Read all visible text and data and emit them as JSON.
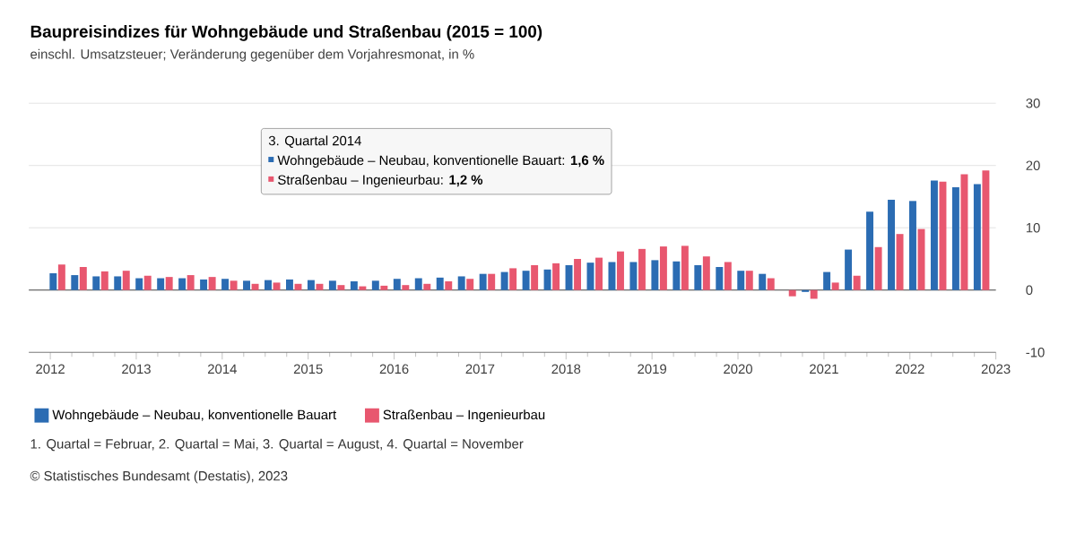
{
  "chart_data": {
    "type": "bar",
    "title": "Baupreisindizes für Wohngebäude und Straßenbau (2015 = 100)",
    "subtitle": "einschl. Umsatzsteuer; Veränderung gegenüber dem Vorjahresmonat, in %",
    "x": [
      "2012-02",
      "2012-05",
      "2012-08",
      "2012-11",
      "2013-02",
      "2013-05",
      "2013-08",
      "2013-11",
      "2014-02",
      "2014-05",
      "2014-08",
      "2014-11",
      "2015-02",
      "2015-05",
      "2015-08",
      "2015-11",
      "2016-02",
      "2016-05",
      "2016-08",
      "2016-11",
      "2017-02",
      "2017-05",
      "2017-08",
      "2017-11",
      "2018-02",
      "2018-05",
      "2018-08",
      "2018-11",
      "2019-02",
      "2019-05",
      "2019-08",
      "2019-11",
      "2020-02",
      "2020-05",
      "2020-08",
      "2020-11",
      "2021-02",
      "2021-05",
      "2021-08",
      "2021-11",
      "2022-02",
      "2022-05",
      "2022-08",
      "2022-11"
    ],
    "series": [
      {
        "name": "Wohngebäude – Neubau, konventionelle Bauart",
        "color": "#2b6cb3",
        "values": [
          2.7,
          2.4,
          2.2,
          2.2,
          1.9,
          1.9,
          1.9,
          1.7,
          1.8,
          1.5,
          1.6,
          1.7,
          1.6,
          1.5,
          1.4,
          1.5,
          1.8,
          1.9,
          2.0,
          2.2,
          2.6,
          2.9,
          3.1,
          3.3,
          4.0,
          4.4,
          4.5,
          4.5,
          4.8,
          4.6,
          4.0,
          3.7,
          3.1,
          2.6,
          0.0,
          -0.3,
          2.9,
          6.5,
          12.6,
          14.5,
          14.3,
          17.6,
          16.5,
          17.0
        ]
      },
      {
        "name": "Straßenbau – Ingenieurbau",
        "color": "#e8576f",
        "values": [
          4.1,
          3.7,
          3.0,
          3.1,
          2.3,
          2.1,
          2.4,
          2.1,
          1.5,
          1.0,
          1.2,
          1.0,
          1.0,
          0.8,
          0.6,
          0.7,
          0.8,
          1.0,
          1.4,
          1.8,
          2.6,
          3.5,
          4.0,
          4.3,
          5.0,
          5.2,
          6.2,
          6.6,
          7.0,
          7.1,
          5.4,
          4.5,
          3.1,
          1.9,
          -1.0,
          -1.4,
          1.2,
          2.3,
          6.9,
          9.0,
          9.8,
          17.4,
          18.6,
          19.2
        ]
      }
    ],
    "xlim": [
      "2011-10",
      "2023-01"
    ],
    "xticks": [
      "2012",
      "2013",
      "2014",
      "2015",
      "2016",
      "2017",
      "2018",
      "2019",
      "2020",
      "2021",
      "2022",
      "2023"
    ],
    "ylim": [
      -10,
      30
    ],
    "yticks": [
      -10,
      0,
      10,
      20,
      30
    ],
    "grid": "y",
    "legend": "bottom",
    "annotations": [
      "3. Quartal 2014",
      "Wohngebäude – Neubau, konventionelle Bauart: **1,6 %**",
      "Straßenbau – Ingenieurbau: **1,2 %**",
      "1. Quartal = Februar, 2. Quartal = Mai, 3. Quartal = August, 4. Quartal = November",
      "© Statistisches Bundesamt (Destatis), 2023"
    ]
  }
}
